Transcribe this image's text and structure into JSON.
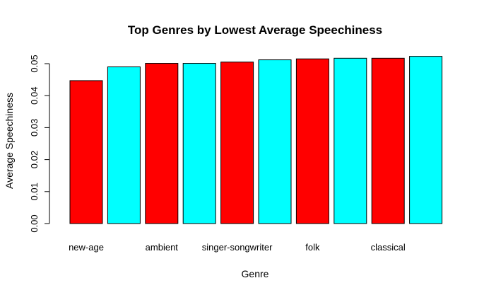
{
  "chart_data": {
    "type": "bar",
    "title": "Top Genres by Lowest Average Speechiness",
    "xlabel": "Genre",
    "ylabel": "Average Speechiness",
    "ylim": [
      0,
      0.05
    ],
    "yticks": [
      "0.00",
      "0.01",
      "0.02",
      "0.03",
      "0.04",
      "0.05"
    ],
    "categories": [
      "new-age",
      "",
      "ambient",
      "",
      "singer-songwriter",
      "",
      "folk",
      "",
      "classical",
      ""
    ],
    "values": [
      0.0447,
      0.049,
      0.0501,
      0.0501,
      0.0505,
      0.0512,
      0.0515,
      0.0517,
      0.0517,
      0.0523
    ],
    "colors": [
      "#ff0000",
      "#00ffff",
      "#ff0000",
      "#00ffff",
      "#ff0000",
      "#00ffff",
      "#ff0000",
      "#00ffff",
      "#ff0000",
      "#00ffff"
    ],
    "grid": false,
    "legend": "none"
  }
}
